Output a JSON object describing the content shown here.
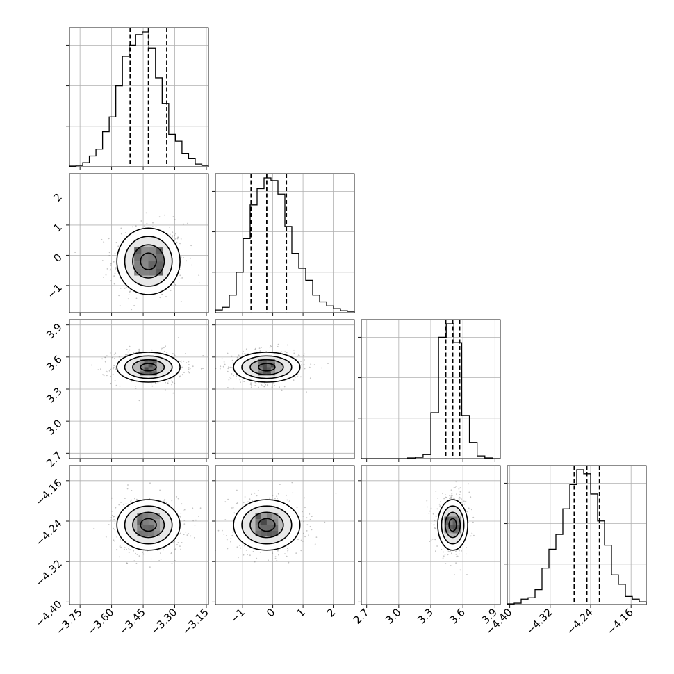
{
  "chart_data": {
    "type": "corner",
    "title": "",
    "params": [
      {
        "range": [
          -3.8,
          -3.14
        ],
        "ticks": [
          -3.75,
          -3.6,
          -3.45,
          -3.3,
          -3.15
        ],
        "tick_labels": [
          "−3.75",
          "−3.60",
          "−3.45",
          "−3.30",
          "−3.15"
        ],
        "quantiles": [
          -3.512,
          -3.425,
          -3.338
        ],
        "median": -3.425,
        "sigma": 0.075
      },
      {
        "range": [
          -1.9,
          2.7
        ],
        "ticks": [
          -1,
          0,
          1,
          2
        ],
        "tick_labels": [
          "−1",
          "0",
          "1",
          "2"
        ],
        "quantiles": [
          -0.72,
          -0.2,
          0.45
        ],
        "median": -0.2,
        "sigma": 0.55
      },
      {
        "range": [
          2.65,
          3.95
        ],
        "ticks": [
          2.7,
          3.0,
          3.3,
          3.6,
          3.9
        ],
        "tick_labels": [
          "2.7",
          "3.0",
          "3.3",
          "3.6",
          "3.9"
        ],
        "quantiles": [
          3.44,
          3.505,
          3.57
        ],
        "median": 3.505,
        "sigma": 0.07
      },
      {
        "range": [
          -4.405,
          -4.13
        ],
        "ticks": [
          -4.4,
          -4.32,
          -4.24,
          -4.16
        ],
        "tick_labels": [
          "−4.40",
          "−4.32",
          "−4.24",
          "−4.16"
        ],
        "quantiles": [
          -4.2725,
          -4.2475,
          -4.2225
        ],
        "median": -4.2475,
        "sigma": 0.025
      }
    ],
    "histograms": [
      {
        "values": [
          0.005,
          0.01,
          0.03,
          0.08,
          0.13,
          0.26,
          0.37,
          0.6,
          0.82,
          0.9,
          0.98,
          1.0,
          0.88,
          0.66,
          0.47,
          0.24,
          0.19,
          0.1,
          0.06,
          0.02,
          0.01
        ]
      },
      {
        "values": [
          0.02,
          0.04,
          0.13,
          0.3,
          0.55,
          0.8,
          0.92,
          1.0,
          0.98,
          0.88,
          0.64,
          0.44,
          0.33,
          0.24,
          0.13,
          0.08,
          0.05,
          0.03,
          0.015,
          0.01
        ]
      },
      {
        "values": [
          0.0,
          0.0,
          0.0,
          0.0,
          0.0,
          0.0,
          0.005,
          0.01,
          0.03,
          0.34,
          0.9,
          1.0,
          0.86,
          0.32,
          0.12,
          0.02,
          0.005,
          0.0
        ]
      },
      {
        "values": [
          0.005,
          0.01,
          0.04,
          0.05,
          0.11,
          0.27,
          0.41,
          0.52,
          0.71,
          0.89,
          1.0,
          0.97,
          0.82,
          0.62,
          0.44,
          0.22,
          0.15,
          0.06,
          0.04,
          0.02
        ]
      }
    ],
    "grid": true,
    "scatter_color": "#7a7a7a",
    "line_color": "#000000"
  }
}
